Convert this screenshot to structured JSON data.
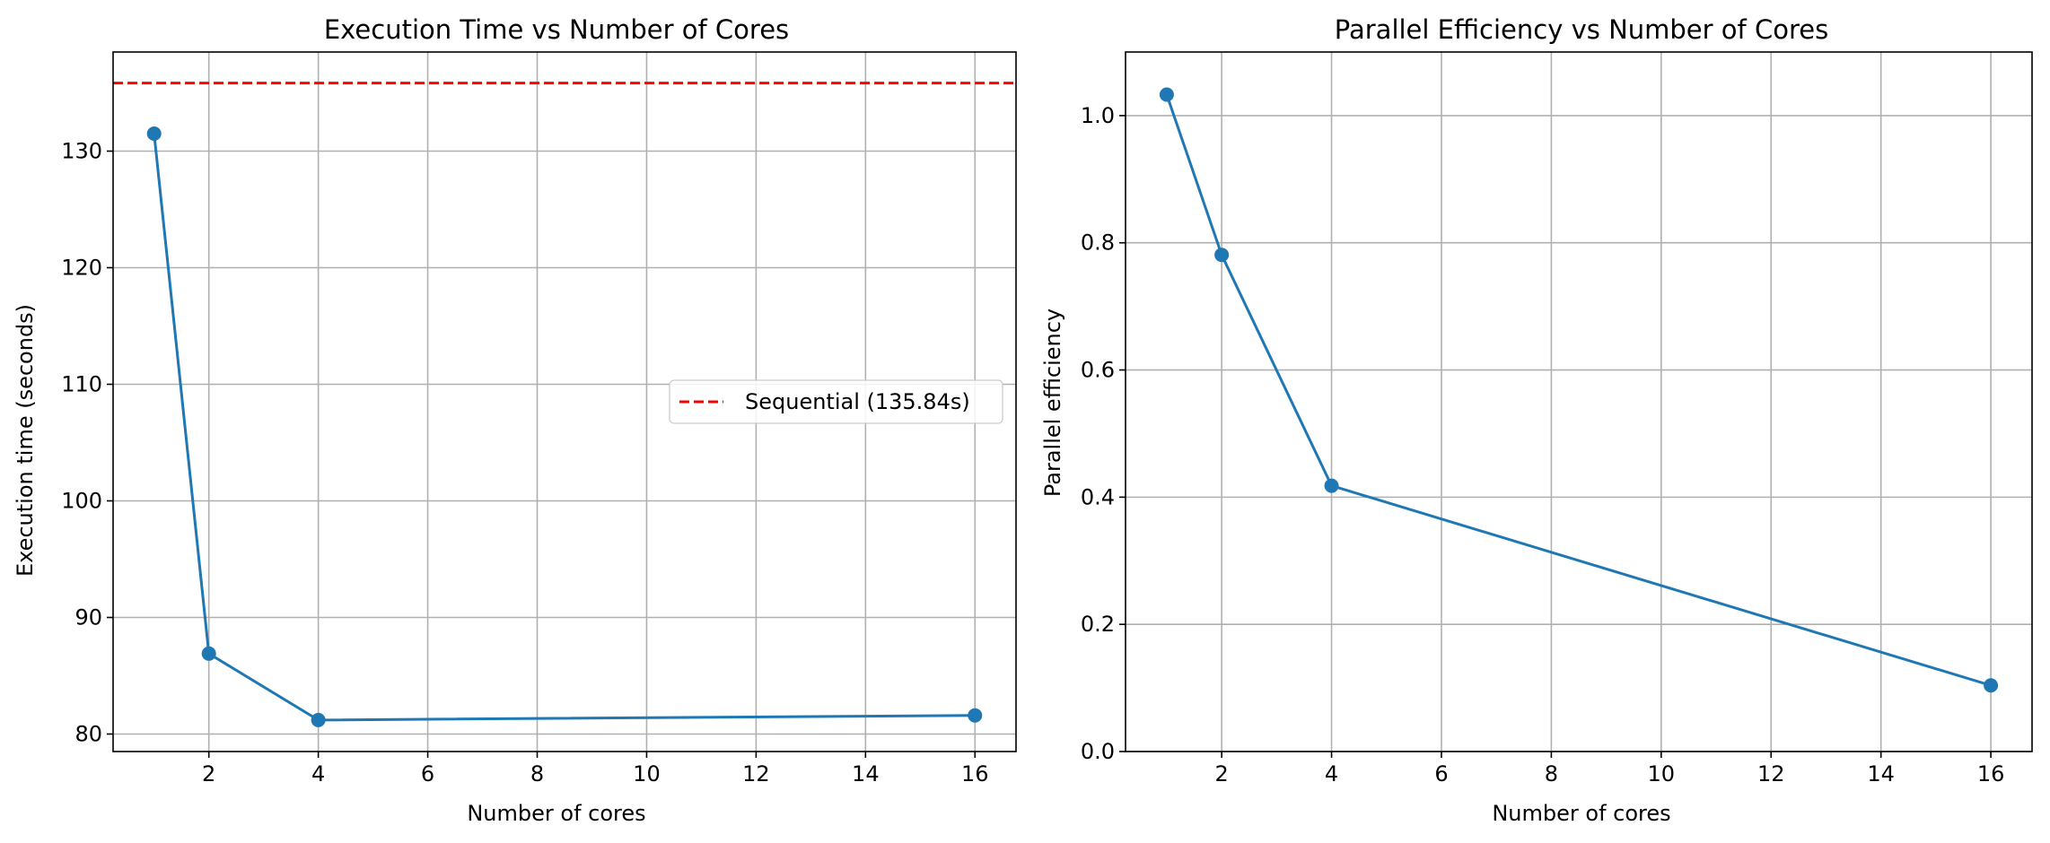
{
  "chart_data": [
    {
      "type": "line",
      "title": "Execution Time vs Number of Cores",
      "xlabel": "Number of cores",
      "ylabel": "Execution time (seconds)",
      "xlim": [
        0.25,
        16.75
      ],
      "ylim": [
        78.5,
        138.5
      ],
      "xticks": [
        2,
        4,
        6,
        8,
        10,
        12,
        14,
        16
      ],
      "yticks": [
        80,
        90,
        100,
        110,
        120,
        130
      ],
      "grid": true,
      "series": [
        {
          "x": [
            1,
            2,
            4,
            16
          ],
          "y": [
            131.5,
            86.9,
            81.2,
            81.6
          ],
          "color": "#1f77b4",
          "marker": "circle"
        }
      ],
      "reference_line": {
        "name": "Sequential (135.84s)",
        "y": 135.84,
        "color": "#ff0000",
        "style": "dashed"
      },
      "legend": {
        "position": "center-right",
        "entries": [
          "Sequential (135.84s)"
        ]
      }
    },
    {
      "type": "line",
      "title": "Parallel Efficiency vs Number of Cores",
      "xlabel": "Number of cores",
      "ylabel": "Parallel efficiency",
      "xlim": [
        0.25,
        16.75
      ],
      "ylim": [
        0.0,
        1.1
      ],
      "xticks": [
        2,
        4,
        6,
        8,
        10,
        12,
        14,
        16
      ],
      "yticks": [
        0.0,
        0.2,
        0.4,
        0.6,
        0.8,
        1.0
      ],
      "grid": true,
      "series": [
        {
          "x": [
            1,
            2,
            4,
            16
          ],
          "y": [
            1.033,
            0.781,
            0.418,
            0.104
          ],
          "color": "#1f77b4",
          "marker": "circle"
        }
      ]
    }
  ]
}
